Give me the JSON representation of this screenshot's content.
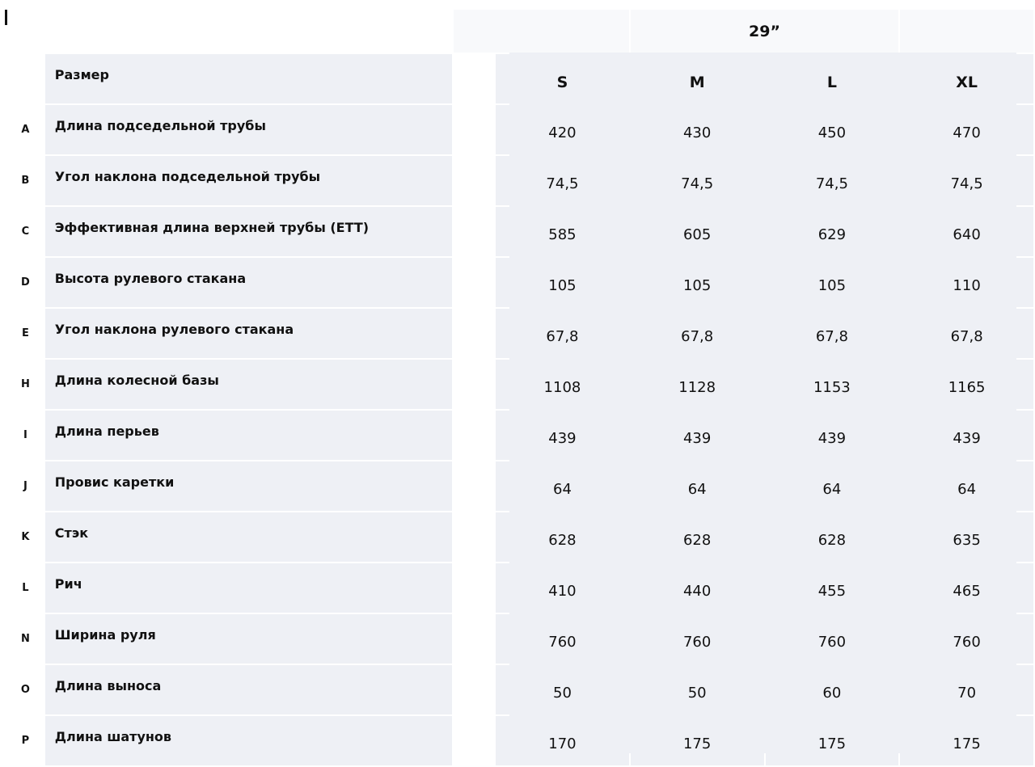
{
  "wheel_size": "29”",
  "size_label": "Размер",
  "sizes": [
    "S",
    "M",
    "L",
    "XL"
  ],
  "rows": [
    {
      "letter": "A",
      "name": "Длина подседельной трубы",
      "values": [
        "420",
        "430",
        "450",
        "470"
      ]
    },
    {
      "letter": "B",
      "name": "Угол наклона подседельной трубы",
      "values": [
        "74,5",
        "74,5",
        "74,5",
        "74,5"
      ]
    },
    {
      "letter": "C",
      "name": "Эффективная длина верхней трубы (ETT)",
      "values": [
        "585",
        "605",
        "629",
        "640"
      ]
    },
    {
      "letter": "D",
      "name": "Высота рулевого стакана",
      "values": [
        "105",
        "105",
        "105",
        "110"
      ]
    },
    {
      "letter": "E",
      "name": "Угол наклона рулевого стакана",
      "values": [
        "67,8",
        "67,8",
        "67,8",
        "67,8"
      ]
    },
    {
      "letter": "H",
      "name": "Длина колесной базы",
      "values": [
        "1108",
        "1128",
        "1153",
        "1165"
      ]
    },
    {
      "letter": "I",
      "name": "Длина перьев",
      "values": [
        "439",
        "439",
        "439",
        "439"
      ]
    },
    {
      "letter": "J",
      "name": "Провис каретки",
      "values": [
        "64",
        "64",
        "64",
        "64"
      ]
    },
    {
      "letter": "K",
      "name": "Стэк",
      "values": [
        "628",
        "628",
        "628",
        "635"
      ]
    },
    {
      "letter": "L",
      "name": "Рич",
      "values": [
        "410",
        "440",
        "455",
        "465"
      ]
    },
    {
      "letter": "N",
      "name": "Ширина руля",
      "values": [
        "760",
        "760",
        "760",
        "760"
      ]
    },
    {
      "letter": "O",
      "name": "Длина выноса",
      "values": [
        "50",
        "50",
        "60",
        "70"
      ]
    },
    {
      "letter": "P",
      "name": "Длина шатунов",
      "values": [
        "170",
        "175",
        "175",
        "175"
      ]
    }
  ]
}
